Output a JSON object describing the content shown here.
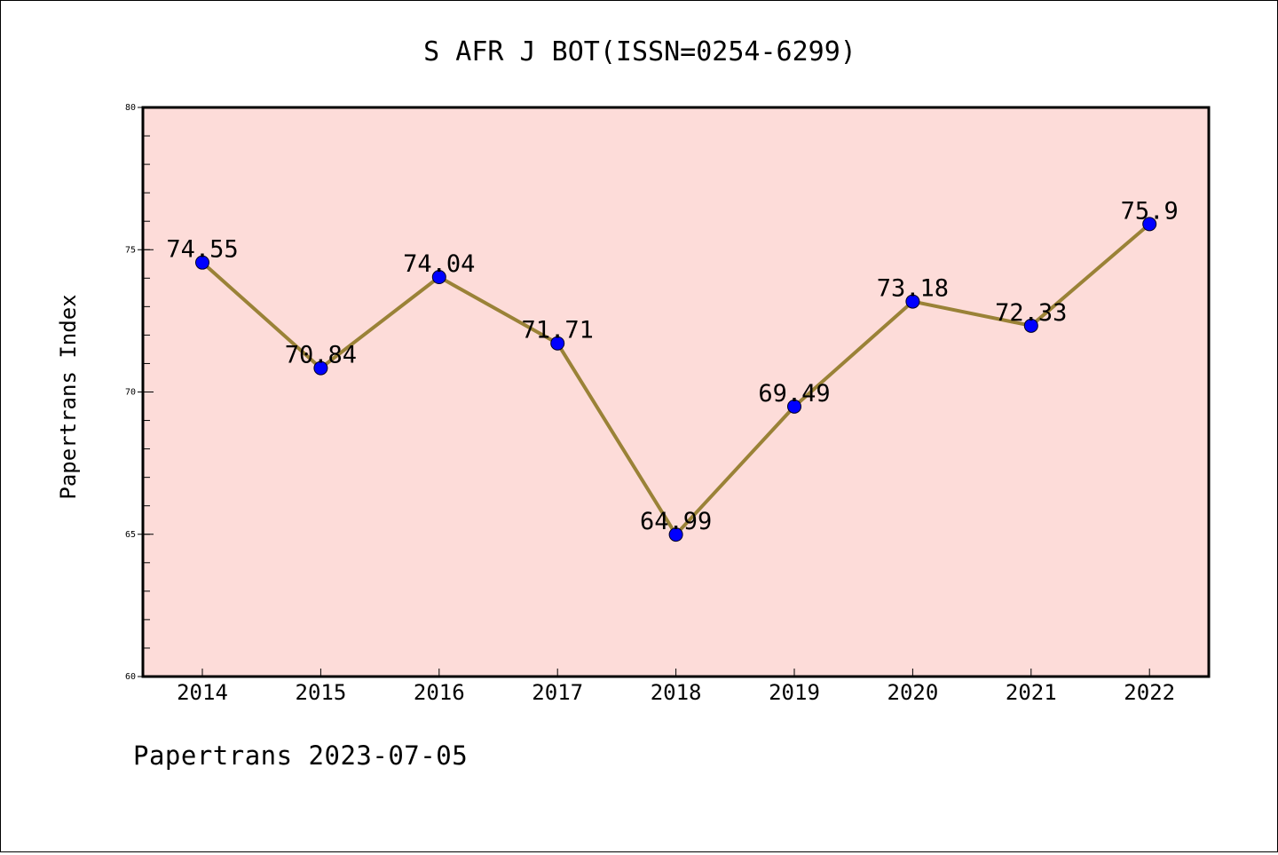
{
  "chart_data": {
    "type": "line",
    "title": "S AFR J BOT(ISSN=0254-6299)",
    "xlabel": "",
    "ylabel": "Papertrans Index",
    "categories": [
      "2014",
      "2015",
      "2016",
      "2017",
      "2018",
      "2019",
      "2020",
      "2021",
      "2022"
    ],
    "values": [
      74.55,
      70.84,
      74.04,
      71.71,
      64.99,
      69.49,
      73.18,
      72.33,
      75.9
    ],
    "value_labels": [
      "74.55",
      "70.84",
      "74.04",
      "71.71",
      "64.99",
      "69.49",
      "73.18",
      "72.33",
      "75.9"
    ],
    "ylim": [
      60,
      80
    ],
    "yticks": [
      "60",
      "65",
      "70",
      "75",
      "80"
    ],
    "grid": false,
    "colors": {
      "line": "#9a8237",
      "marker": "#0000ff",
      "plot_background": "#fddcd9"
    }
  },
  "footer": "Papertrans 2023-07-05"
}
